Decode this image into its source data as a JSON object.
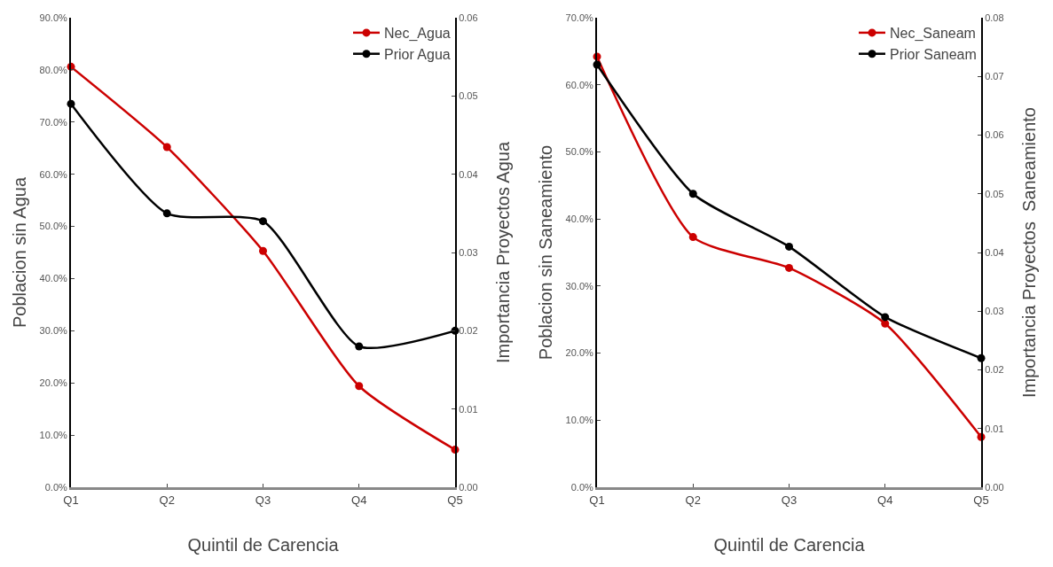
{
  "chart_data": [
    {
      "type": "line",
      "xlabel": "Quintil de Carencia",
      "ylabel": "Poblacion sin Agua",
      "y2label": "Importancia Proyectos Agua",
      "categories": [
        "Q1",
        "Q2",
        "Q3",
        "Q4",
        "Q5"
      ],
      "series": [
        {
          "name": "Nec_Agua",
          "color": "#cc0000",
          "values": [
            80.6,
            65.2,
            45.3,
            19.4,
            7.2
          ]
        },
        {
          "name": "Prior Agua",
          "color": "#000000",
          "axis": "y2",
          "values": [
            0.049,
            0.035,
            0.034,
            0.018,
            0.02
          ]
        }
      ],
      "ylim": [
        0,
        90
      ],
      "yticks": [
        {
          "value": 0,
          "label": "0.0%"
        },
        {
          "value": 10,
          "label": "10.0%"
        },
        {
          "value": 20,
          "label": "20.0%"
        },
        {
          "value": 30,
          "label": "30.0%"
        },
        {
          "value": 40,
          "label": "40.0%"
        },
        {
          "value": 50,
          "label": "50.0%"
        },
        {
          "value": 60,
          "label": "60.0%"
        },
        {
          "value": 70,
          "label": "70.0%"
        },
        {
          "value": 80,
          "label": "80.0%"
        },
        {
          "value": 90,
          "label": "90.0%"
        }
      ],
      "y2lim": [
        0,
        0.06
      ],
      "y2ticks": [
        {
          "value": 0,
          "label": "0.00"
        },
        {
          "value": 0.01,
          "label": "0.01"
        },
        {
          "value": 0.02,
          "label": "0.02"
        },
        {
          "value": 0.03,
          "label": "0.03"
        },
        {
          "value": 0.04,
          "label": "0.04"
        },
        {
          "value": 0.05,
          "label": "0.05"
        },
        {
          "value": 0.06,
          "label": "0.06"
        }
      ],
      "legend": "top right",
      "marker": "circle",
      "line_style": "solid",
      "grid": false
    },
    {
      "type": "line",
      "xlabel": "Quintil de Carencia",
      "ylabel": "Poblacion sin Saneamiento",
      "y2label": "Importancia Proyectos  Saneamiento",
      "categories": [
        "Q1",
        "Q2",
        "Q3",
        "Q4",
        "Q5"
      ],
      "series": [
        {
          "name": "Nec_Saneam",
          "color": "#cc0000",
          "values": [
            64.2,
            37.3,
            32.7,
            24.4,
            7.5
          ]
        },
        {
          "name": "Prior Saneam",
          "color": "#000000",
          "axis": "y2",
          "values": [
            0.072,
            0.05,
            0.041,
            0.029,
            0.022
          ]
        }
      ],
      "ylim": [
        0,
        70
      ],
      "yticks": [
        {
          "value": 0,
          "label": "0.0%"
        },
        {
          "value": 10,
          "label": "10.0%"
        },
        {
          "value": 20,
          "label": "20.0%"
        },
        {
          "value": 30,
          "label": "30.0%"
        },
        {
          "value": 40,
          "label": "40.0%"
        },
        {
          "value": 50,
          "label": "50.0%"
        },
        {
          "value": 60,
          "label": "60.0%"
        },
        {
          "value": 70,
          "label": "70.0%"
        }
      ],
      "y2lim": [
        0,
        0.08
      ],
      "y2ticks": [
        {
          "value": 0,
          "label": "0.00"
        },
        {
          "value": 0.01,
          "label": "0.01"
        },
        {
          "value": 0.02,
          "label": "0.02"
        },
        {
          "value": 0.03,
          "label": "0.03"
        },
        {
          "value": 0.04,
          "label": "0.04"
        },
        {
          "value": 0.05,
          "label": "0.05"
        },
        {
          "value": 0.06,
          "label": "0.06"
        },
        {
          "value": 0.07,
          "label": "0.07"
        },
        {
          "value": 0.08,
          "label": "0.08"
        }
      ],
      "legend": "top right",
      "marker": "circle",
      "line_style": "solid",
      "grid": false
    }
  ]
}
